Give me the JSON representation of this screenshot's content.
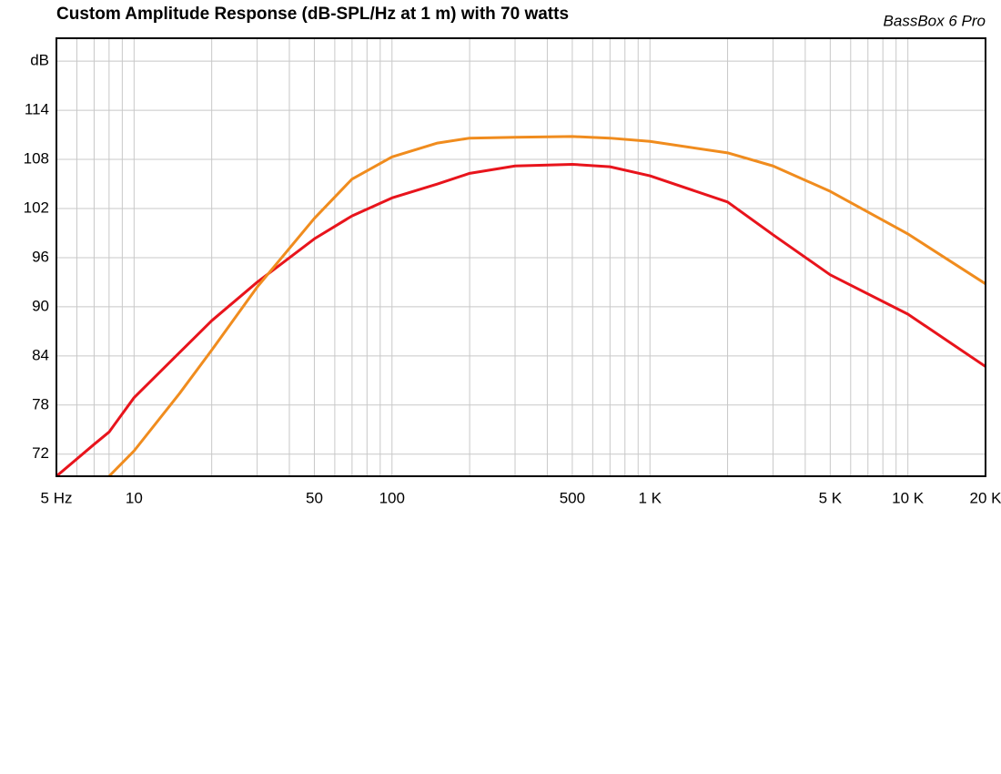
{
  "chart_data": {
    "type": "line",
    "title": "Custom Amplitude Response (dB-SPL/Hz at 1 m) with 70 watts",
    "subtitle": "BassBox 6 Pro",
    "log_x": true,
    "grid": true,
    "x": [
      5,
      7,
      8,
      10,
      15,
      20,
      30,
      50,
      70,
      100,
      150,
      200,
      300,
      500,
      700,
      1000,
      2000,
      3000,
      5000,
      10000,
      20000
    ],
    "series": [
      {
        "color": "#e8141c",
        "values": [
          69.3,
          73.2,
          74.7,
          78.9,
          84.4,
          88.3,
          93.0,
          98.3,
          101.1,
          103.3,
          105.0,
          106.3,
          107.2,
          107.4,
          107.1,
          106.0,
          102.8,
          98.8,
          93.9,
          89.1,
          82.7
        ]
      },
      {
        "color": "#f08c1e",
        "values": [
          null,
          null,
          69.3,
          72.4,
          79.4,
          84.7,
          92.4,
          100.8,
          105.6,
          108.3,
          110.0,
          110.6,
          110.7,
          110.8,
          110.6,
          110.2,
          108.8,
          107.2,
          104.1,
          98.9,
          92.8
        ]
      }
    ],
    "xlim": [
      5,
      20000
    ],
    "ylim": [
      69.3,
      122.8
    ],
    "xticks": [
      {
        "value": 5,
        "label": "5 Hz"
      },
      10,
      50,
      100,
      500,
      {
        "value": 1000,
        "label": "1 K"
      },
      {
        "value": 5000,
        "label": "5 K"
      },
      {
        "value": 10000,
        "label": "10 K"
      },
      {
        "value": 20000,
        "label": "20 K"
      }
    ],
    "x_minor_grid": [
      6,
      7,
      8,
      9,
      20,
      30,
      40,
      60,
      70,
      80,
      90,
      200,
      300,
      400,
      600,
      700,
      800,
      900,
      2000,
      3000,
      4000,
      6000,
      7000,
      8000,
      9000
    ],
    "yticks": [
      72,
      78,
      84,
      90,
      96,
      102,
      108,
      114,
      {
        "value": 120,
        "label": "dB"
      }
    ]
  }
}
